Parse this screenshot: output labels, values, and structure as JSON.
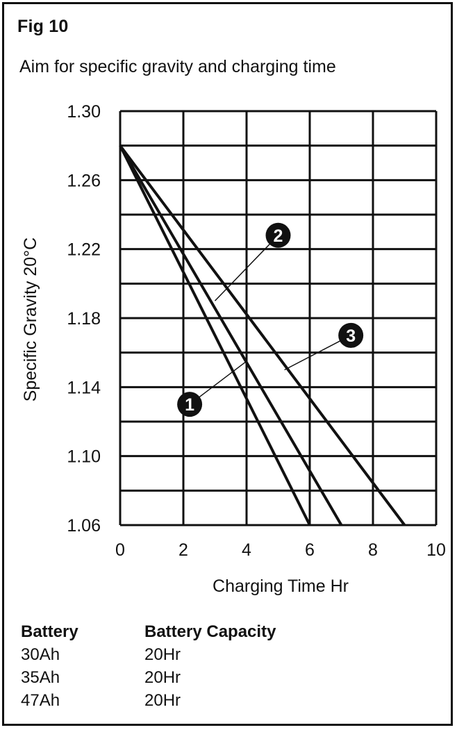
{
  "figure_label": "Fig 10",
  "subtitle": "Aim for specific gravity and charging time",
  "chart_data": {
    "type": "line",
    "title": "Aim for specific gravity and charging time",
    "xlabel": "Charging Time Hr",
    "ylabel": "Specific Gravity 20°C",
    "xlim": [
      0,
      10
    ],
    "ylim": [
      1.06,
      1.3
    ],
    "x_ticks": [
      0,
      2,
      4,
      6,
      8,
      10
    ],
    "y_ticks": [
      1.06,
      1.1,
      1.14,
      1.18,
      1.22,
      1.26,
      1.3
    ],
    "x_tick_labels": [
      "0",
      "2",
      "4",
      "6",
      "8",
      "10"
    ],
    "y_tick_labels": [
      "1.06",
      "1.10",
      "1.14",
      "1.18",
      "1.22",
      "1.26",
      "1.30"
    ],
    "grid": true,
    "series": [
      {
        "marker": "1",
        "x": [
          0,
          6
        ],
        "y": [
          1.28,
          1.06
        ],
        "label_at": [
          2.2,
          1.13
        ],
        "leader_to": [
          4.0,
          1.155
        ]
      },
      {
        "marker": "2",
        "x": [
          0,
          7
        ],
        "y": [
          1.28,
          1.06
        ],
        "label_at": [
          5.0,
          1.228
        ],
        "leader_to": [
          3.0,
          1.19
        ]
      },
      {
        "marker": "3",
        "x": [
          0,
          9
        ],
        "y": [
          1.28,
          1.06
        ],
        "label_at": [
          7.3,
          1.17
        ],
        "leader_to": [
          5.2,
          1.15
        ]
      }
    ]
  },
  "legend": {
    "header_battery": "Battery",
    "header_capacity": "Battery Capacity",
    "rows": [
      {
        "battery": "30Ah",
        "capacity": "20Hr"
      },
      {
        "battery": "35Ah",
        "capacity": "20Hr"
      },
      {
        "battery": "47Ah",
        "capacity": "20Hr"
      }
    ]
  }
}
